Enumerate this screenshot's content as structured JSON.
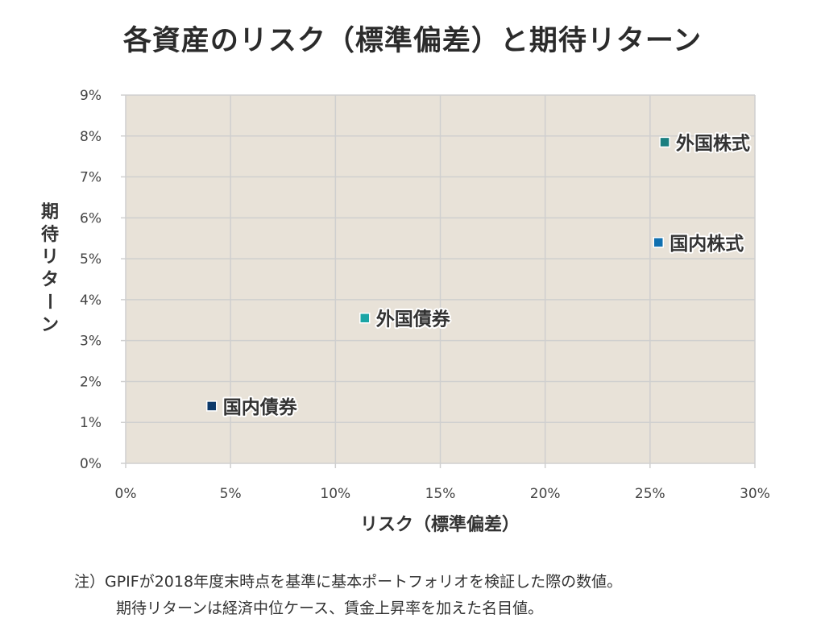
{
  "chart_data": {
    "type": "scatter",
    "title": "各資産のリスク（標準偏差）と期待リターン",
    "xlabel": "リスク（標準偏差）",
    "ylabel": "期待リターン",
    "xlim": [
      0,
      30
    ],
    "ylim": [
      0,
      9
    ],
    "x_ticks": [
      "0%",
      "5%",
      "10%",
      "15%",
      "20%",
      "25%",
      "30%"
    ],
    "y_ticks": [
      "0%",
      "1%",
      "2%",
      "3%",
      "4%",
      "5%",
      "6%",
      "7%",
      "8%",
      "9%"
    ],
    "grid": true,
    "background": "#e8e2d8",
    "points": [
      {
        "name": "国内債券",
        "x": 4.1,
        "y": 1.4,
        "color": "#0d3a6a"
      },
      {
        "name": "外国債券",
        "x": 11.4,
        "y": 3.55,
        "color": "#1aa5a5"
      },
      {
        "name": "国内株式",
        "x": 25.4,
        "y": 5.4,
        "color": "#1070b0"
      },
      {
        "name": "外国株式",
        "x": 25.7,
        "y": 7.85,
        "color": "#1a7f80"
      }
    ]
  },
  "note": {
    "line1": "注）GPIFが2018年度末時点を基準に基本ポートフォリオを検証した際の数値。",
    "line2": "期待リターンは経済中位ケース、賃金上昇率を加えた名目値。"
  }
}
